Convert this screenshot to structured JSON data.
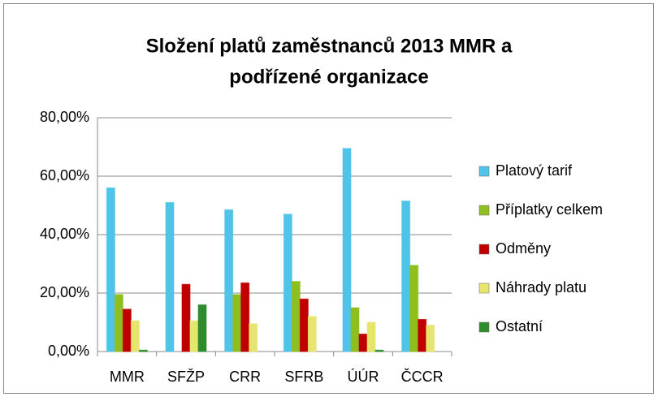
{
  "chart_data": {
    "type": "bar",
    "title": [
      "Složení platů zaměstnanců 2013 MMR a",
      "podřízené organizace"
    ],
    "categories": [
      "MMR",
      "SFŽP",
      "CRR",
      "SFRB",
      "ÚÚR",
      "ČCCR"
    ],
    "series": [
      {
        "name": "Platový tarif",
        "color": "#4fc3e8",
        "values": [
          56,
          51,
          48.5,
          47,
          69.5,
          51.5
        ]
      },
      {
        "name": "Příplatky celkem",
        "color": "#8fbf1f",
        "values": [
          19.5,
          0,
          19.5,
          24,
          15,
          29.5
        ]
      },
      {
        "name": "Odměny",
        "color": "#c00000",
        "values": [
          14.5,
          23,
          23.5,
          18,
          6,
          11
        ]
      },
      {
        "name": "Náhrady platu",
        "color": "#e6e66e",
        "values": [
          10.5,
          10.5,
          9.5,
          12,
          10,
          9
        ]
      },
      {
        "name": "Ostatní",
        "color": "#2e8b2e",
        "values": [
          0.5,
          16,
          0,
          0,
          0.5,
          0
        ]
      }
    ],
    "ylim": [
      0,
      80
    ],
    "yticks": [
      {
        "value": 0,
        "label": "0,00%"
      },
      {
        "value": 20,
        "label": "20,00%"
      },
      {
        "value": 40,
        "label": "40,00%"
      },
      {
        "value": 60,
        "label": "60,00%"
      },
      {
        "value": 80,
        "label": "80,00%"
      }
    ],
    "grid": true,
    "legend": "right"
  }
}
